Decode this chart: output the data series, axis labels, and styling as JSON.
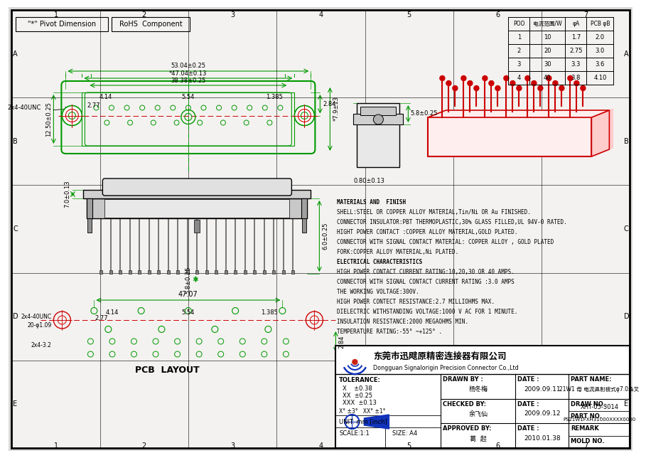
{
  "bg_color": "#f0eeee",
  "border_color": "#000000",
  "green": "#009900",
  "red": "#cc0000",
  "black": "#000000",
  "dim_green": "#009900",
  "dim_black": "#000000",
  "grid_x_labels": [
    "1",
    "2",
    "3",
    "4",
    "5",
    "6",
    "7"
  ],
  "grid_y_labels": [
    "A",
    "B",
    "C",
    "D",
    "E"
  ],
  "title_box1": "\"*\" Pivot Dimension",
  "title_box2": "RoHS  Component",
  "table_headers": [
    "POO",
    "电流范围/W",
    "φA",
    "PCB φB"
  ],
  "table_rows": [
    [
      "1",
      "10",
      "1.7",
      "2.0"
    ],
    [
      "2",
      "20",
      "2.75",
      "3.0"
    ],
    [
      "3",
      "30",
      "3.3",
      "3.6"
    ],
    [
      "4",
      "40",
      "3.8",
      "4.10"
    ]
  ],
  "materials": [
    "MATERIALS AND  FINISH",
    "SHELL:STEEL OR COPPER ALLOY MATERIAL,Tin/Ni OR Au FINISHED.",
    "CONNECTOR INSULATOR:PBT THERMOPLASTIC,30% GLASS FILLED,UL 94V-0 RATED.",
    "HIGHT POWER CONTACT :COPPER ALLOY MATERIAL,GOLD PLATED.",
    "CONNECTOR WITH SIGNAL CONTACT MATERIAL: COPPER ALLOY , GOLD PLATED",
    "FORK:COPPER ALLOY MATERIAL,Ni PLATED.",
    "ELECTRICAL CHARACTERISTICS",
    "HIGH POWER CONTACT CURRENT RATING:10,20,30 OR 40 AMPS.",
    "CONNECTOR WITH SIGNAL CONTACT CURRENT RATING :3.0 AMPS",
    "THE WORKING VOLTAGE:300V.",
    "HIGH POWER CONTECT RESISTANCE:2.7 MILLIOHMS MAX.",
    "DIELECTRIC WITHSTANDING VOLTAGE:1000 V AC FOR 1 MINUTE.",
    "INSULATION RESISTANCE:2000 MEGAOHMS MIN.",
    "TEMPERATURE RATING:-55° ~+125° ."
  ],
  "tb_company_cn": "东莞市迅飕原精密连接器有限公司",
  "tb_company_en": "Dongguan Signalorigin Precision Connector Co.,Ltd",
  "tb_tol_x": "±0.38",
  "tb_tol_xx": "±0.25",
  "tb_tol_xxx": "±0.13",
  "tb_drawn_by": "杨冬梅",
  "tb_drawn_date": "2009.09.11",
  "tb_checked_by": "余飞仙",
  "tb_checked_date": "2009.09.12",
  "tb_approved_by": "葛  起",
  "tb_approved_date": "2010.01.38",
  "tb_part_name": "21W1 母 电流直射板式φ7.0鱼叉",
  "tb_draw_no": "XHT-05-3014",
  "tb_part_no": "PS21W1FXH31000XXXX0000",
  "tb_remark": "REMARK",
  "tb_mold_no": "MOLD NO.",
  "pcb_label": "PCB  LAYOUT"
}
